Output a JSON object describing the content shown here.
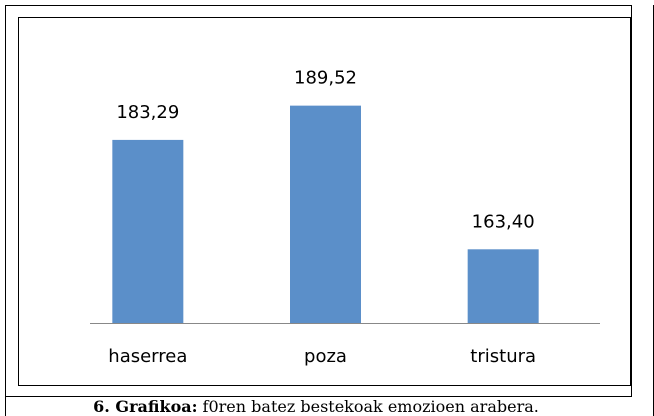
{
  "chart_data": {
    "type": "bar",
    "categories": [
      "haserrea",
      "poza",
      "tristura"
    ],
    "values": [
      183.29,
      189.52,
      163.4
    ],
    "value_labels": [
      "183,29",
      "189,52",
      "163,40"
    ],
    "color": "#5b8fc9",
    "ylim": [
      150,
      190
    ]
  },
  "caption": {
    "label": "6. Grafikoa:",
    "text": "f0ren batez bestekoak emozioen arabera."
  }
}
